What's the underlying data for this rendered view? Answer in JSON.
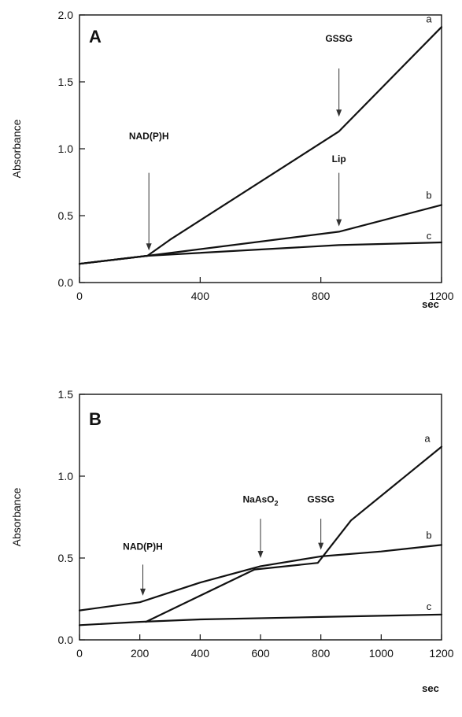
{
  "chart_data": [
    {
      "type": "line",
      "panel_label": "A",
      "ylabel": "Absorbance",
      "xunit": "sec",
      "xlim": [
        0,
        1200
      ],
      "ylim": [
        0,
        2.0
      ],
      "xticks": [
        0,
        400,
        800,
        1200
      ],
      "yticks": [
        0.0,
        0.5,
        1.0,
        1.5,
        2.0
      ],
      "xtick_labels": [
        "0",
        "400",
        "800",
        "1200"
      ],
      "ytick_labels": [
        "0.0",
        "0.5",
        "1.0",
        "1.5",
        "2.0"
      ],
      "series": [
        {
          "name": "a",
          "points": [
            [
              0,
              0.14
            ],
            [
              225,
              0.2
            ],
            [
              300,
              0.32
            ],
            [
              860,
              1.13
            ],
            [
              1200,
              1.91
            ]
          ]
        },
        {
          "name": "b",
          "points": [
            [
              0,
              0.14
            ],
            [
              225,
              0.2
            ],
            [
              860,
              0.38
            ],
            [
              1200,
              0.58
            ]
          ]
        },
        {
          "name": "c",
          "points": [
            [
              0,
              0.14
            ],
            [
              225,
              0.2
            ],
            [
              860,
              0.28
            ],
            [
              1200,
              0.3
            ]
          ]
        }
      ],
      "annotations": [
        {
          "text": "NAD(P)H",
          "x": 230,
          "y_tip": 0.24,
          "y_tail": 0.82,
          "y_text": 1.07
        },
        {
          "text": "GSSG",
          "x": 860,
          "y_tip": 1.24,
          "y_tail": 1.6,
          "y_text": 1.8
        },
        {
          "text": "Lip",
          "x": 860,
          "y_tip": 0.42,
          "y_tail": 0.82,
          "y_text": 0.9
        }
      ]
    },
    {
      "type": "line",
      "panel_label": "B",
      "ylabel": "Absorbance",
      "xunit": "sec",
      "xlim": [
        0,
        1200
      ],
      "ylim": [
        0,
        1.5
      ],
      "xticks": [
        0,
        200,
        400,
        600,
        800,
        1000,
        1200
      ],
      "yticks": [
        0.0,
        0.5,
        1.0,
        1.5
      ],
      "xtick_labels": [
        "0",
        "200",
        "400",
        "600",
        "800",
        "1000",
        "1200"
      ],
      "ytick_labels": [
        "0.0",
        "0.5",
        "1.0",
        "1.5"
      ],
      "series": [
        {
          "name": "a",
          "points": [
            [
              220,
              0.11
            ],
            [
              580,
              0.43
            ],
            [
              790,
              0.47
            ],
            [
              900,
              0.73
            ],
            [
              1200,
              1.18
            ]
          ]
        },
        {
          "name": "b",
          "points": [
            [
              0,
              0.18
            ],
            [
              200,
              0.23
            ],
            [
              400,
              0.35
            ],
            [
              600,
              0.45
            ],
            [
              800,
              0.51
            ],
            [
              1000,
              0.54
            ],
            [
              1200,
              0.58
            ]
          ]
        },
        {
          "name": "c",
          "points": [
            [
              0,
              0.09
            ],
            [
              200,
              0.11
            ],
            [
              400,
              0.125
            ],
            [
              800,
              0.14
            ],
            [
              1200,
              0.155
            ]
          ]
        }
      ],
      "annotations": [
        {
          "text": "NAD(P)H",
          "x": 210,
          "y_tip": 0.27,
          "y_tail": 0.46,
          "y_text": 0.55
        },
        {
          "text": "NaAsO",
          "sub": "2",
          "x": 600,
          "y_tip": 0.5,
          "y_tail": 0.74,
          "y_text": 0.84
        },
        {
          "text": "GSSG",
          "x": 800,
          "y_tip": 0.55,
          "y_tail": 0.74,
          "y_text": 0.84
        }
      ]
    }
  ]
}
